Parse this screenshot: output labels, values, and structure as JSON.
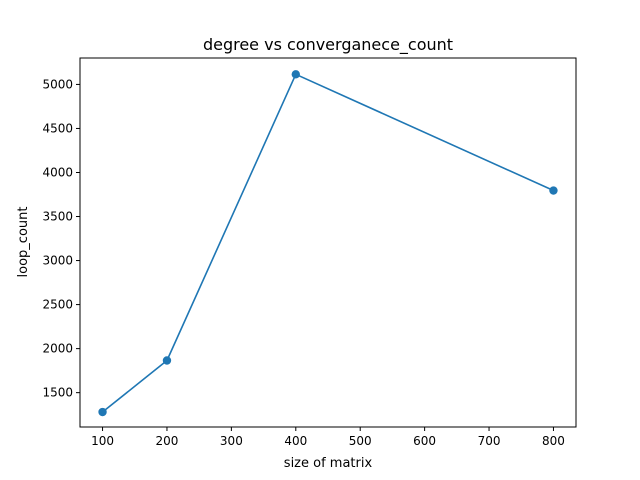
{
  "chart_data": {
    "type": "line",
    "title": "degree vs converganece_count",
    "xlabel": "size of matrix",
    "ylabel": "loop_count",
    "x": [
      100,
      200,
      400,
      800
    ],
    "series": [
      {
        "values": [
          1280,
          1865,
          5115,
          3795
        ]
      }
    ],
    "xlim": [
      65,
      835
    ],
    "ylim": [
      1110,
      5300
    ],
    "xticks": [
      100,
      200,
      300,
      400,
      500,
      600,
      700,
      800
    ],
    "yticks": [
      1500,
      2000,
      2500,
      3000,
      3500,
      4000,
      4500,
      5000
    ],
    "grid": false,
    "line_color": "#1f77b4",
    "marker": "circle"
  }
}
